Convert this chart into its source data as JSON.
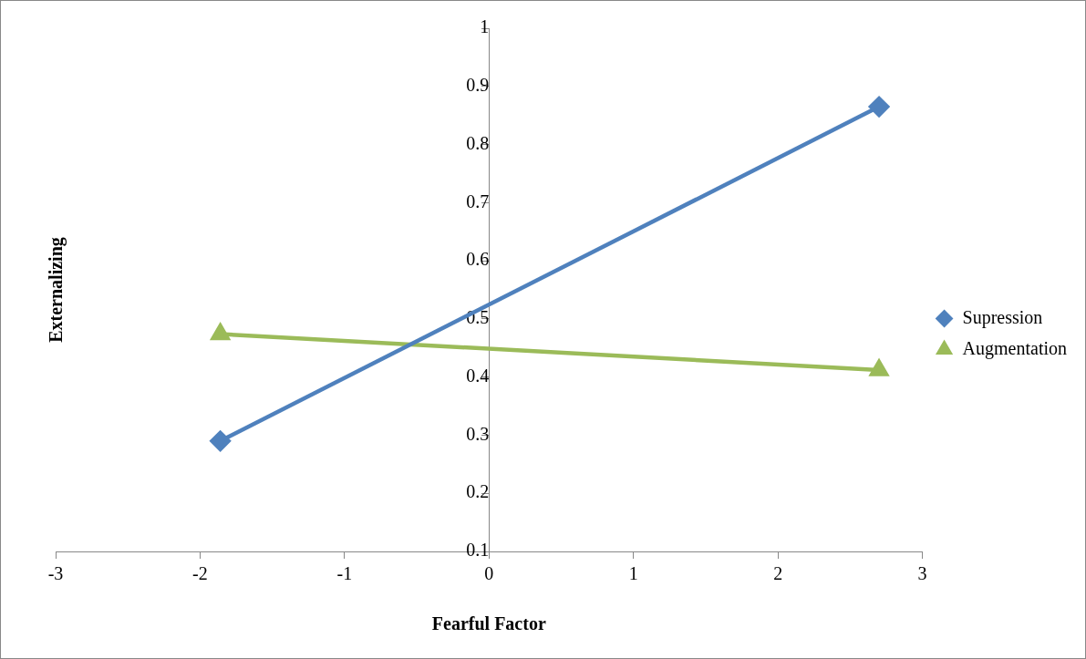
{
  "chart_data": {
    "type": "line",
    "xlabel": "Fearful Factor",
    "ylabel": "Externalizing",
    "xlim": [
      -3,
      3
    ],
    "xticks": [
      -3,
      -2,
      -1,
      0,
      1,
      2,
      3
    ],
    "ylim": [
      0.1,
      1
    ],
    "yticks": [
      {
        "value": 0.1,
        "label": "0.1"
      },
      {
        "value": 0.2,
        "label": "0.2"
      },
      {
        "value": 0.3,
        "label": "0.3"
      },
      {
        "value": 0.4,
        "label": "0.4"
      },
      {
        "value": 0.5,
        "label": "0.5"
      },
      {
        "value": 0.6,
        "label": "0.6"
      },
      {
        "value": 0.7,
        "label": "0.7"
      },
      {
        "value": 0.8,
        "label": "0.8"
      },
      {
        "value": 0.9,
        "label": "0.9"
      },
      {
        "value": 1,
        "label": "1"
      }
    ],
    "x": [
      -1.86,
      2.7
    ],
    "grid": false,
    "legend": "right",
    "line_style": "solid",
    "series": [
      {
        "name": "Supression",
        "color": "#4f81bd",
        "marker": "diamond",
        "values": [
          0.29,
          0.865
        ]
      },
      {
        "name": "Augmentation",
        "color": "#9bbb59",
        "marker": "triangle",
        "values": [
          0.474,
          0.412
        ]
      }
    ]
  }
}
